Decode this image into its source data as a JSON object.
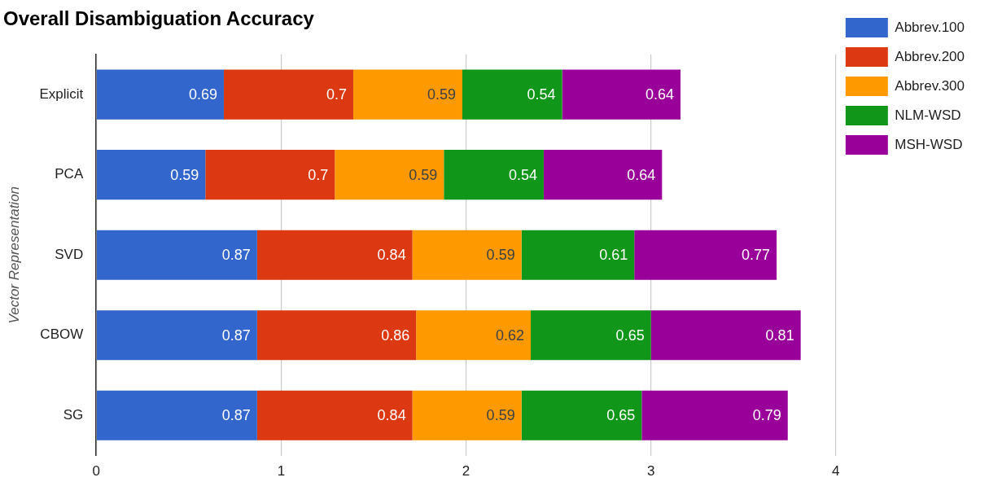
{
  "chart_data": {
    "type": "bar",
    "orientation": "horizontal",
    "stacked": true,
    "title": "Overall Disambiguation Accuracy",
    "ylabel": "Vector Representation",
    "categories": [
      "Explicit",
      "PCA",
      "SVD",
      "CBOW",
      "SG"
    ],
    "series": [
      {
        "name": "Abbrev.100",
        "color": "#3366cc",
        "values": [
          0.69,
          0.59,
          0.87,
          0.87,
          0.87
        ]
      },
      {
        "name": "Abbrev.200",
        "color": "#dc3912",
        "values": [
          0.7,
          0.7,
          0.84,
          0.86,
          0.84
        ]
      },
      {
        "name": "Abbrev.300",
        "color": "#ff9900",
        "values": [
          0.59,
          0.59,
          0.59,
          0.62,
          0.59
        ]
      },
      {
        "name": "NLM-WSD",
        "color": "#109618",
        "values": [
          0.54,
          0.54,
          0.61,
          0.65,
          0.65
        ]
      },
      {
        "name": "MSH-WSD",
        "color": "#990099",
        "values": [
          0.64,
          0.64,
          0.77,
          0.81,
          0.79
        ]
      }
    ],
    "xlim": [
      0,
      4
    ],
    "xticks": [
      0,
      1,
      2,
      3,
      4
    ],
    "grid": "x",
    "legend": "top right",
    "data_labels": true
  }
}
